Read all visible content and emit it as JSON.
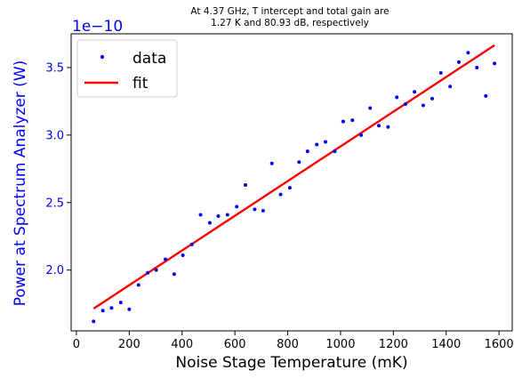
{
  "chart_data": {
    "type": "scatter",
    "title_lines": [
      "At 4.37 GHz, T intercept and total gain are",
      "1.27 K and 80.93 dB, respectively"
    ],
    "xlabel": "Noise Stage Temperature (mK)",
    "ylabel": "Power at Spectrum Analyzer (W)",
    "y_offset_text": "1e−10",
    "y_multiplier": 1e-10,
    "xlim": [
      -20,
      1650
    ],
    "ylim": [
      1.55,
      3.75
    ],
    "xticks": [
      0,
      200,
      400,
      600,
      800,
      1000,
      1200,
      1400,
      1600
    ],
    "xtick_labels": [
      "0",
      "200",
      "400",
      "600",
      "800",
      "1000",
      "1200",
      "1400",
      "1600"
    ],
    "yticks": [
      2.0,
      2.5,
      3.0,
      3.5
    ],
    "ytick_labels": [
      "2.0",
      "2.5",
      "3.0",
      "3.5"
    ],
    "grid": false,
    "legend_position": "top-left",
    "series": [
      {
        "name": "data",
        "kind": "scatter",
        "color": "#0000ff",
        "x": [
          65,
          100,
          133,
          168,
          200,
          235,
          270,
          302,
          337,
          370,
          403,
          437,
          470,
          505,
          537,
          572,
          607,
          640,
          675,
          707,
          740,
          773,
          808,
          843,
          875,
          910,
          943,
          978,
          1010,
          1045,
          1078,
          1112,
          1145,
          1180,
          1213,
          1246,
          1280,
          1313,
          1347,
          1380,
          1415,
          1448,
          1483,
          1516,
          1550,
          1583
        ],
        "y": [
          1.62,
          1.7,
          1.72,
          1.76,
          1.71,
          1.89,
          1.98,
          2.0,
          2.08,
          1.97,
          2.11,
          2.19,
          2.41,
          2.35,
          2.4,
          2.41,
          2.47,
          2.63,
          2.45,
          2.44,
          2.79,
          2.56,
          2.61,
          2.8,
          2.88,
          2.93,
          2.95,
          2.88,
          3.1,
          3.11,
          3.0,
          3.2,
          3.07,
          3.06,
          3.28,
          3.23,
          3.32,
          3.22,
          3.27,
          3.46,
          3.36,
          3.54,
          3.61,
          3.5,
          3.29,
          3.53
        ]
      },
      {
        "name": "fit",
        "kind": "line",
        "color": "#ff0000",
        "x": [
          65,
          1583
        ],
        "y": [
          1.715,
          3.665
        ]
      }
    ]
  },
  "axis_colors": {
    "ylabel": "#0000ff",
    "ytick_labels": "#0000ff",
    "y_offset_text": "#0000ff",
    "xlabel": "#000000",
    "axes": "#000000"
  }
}
